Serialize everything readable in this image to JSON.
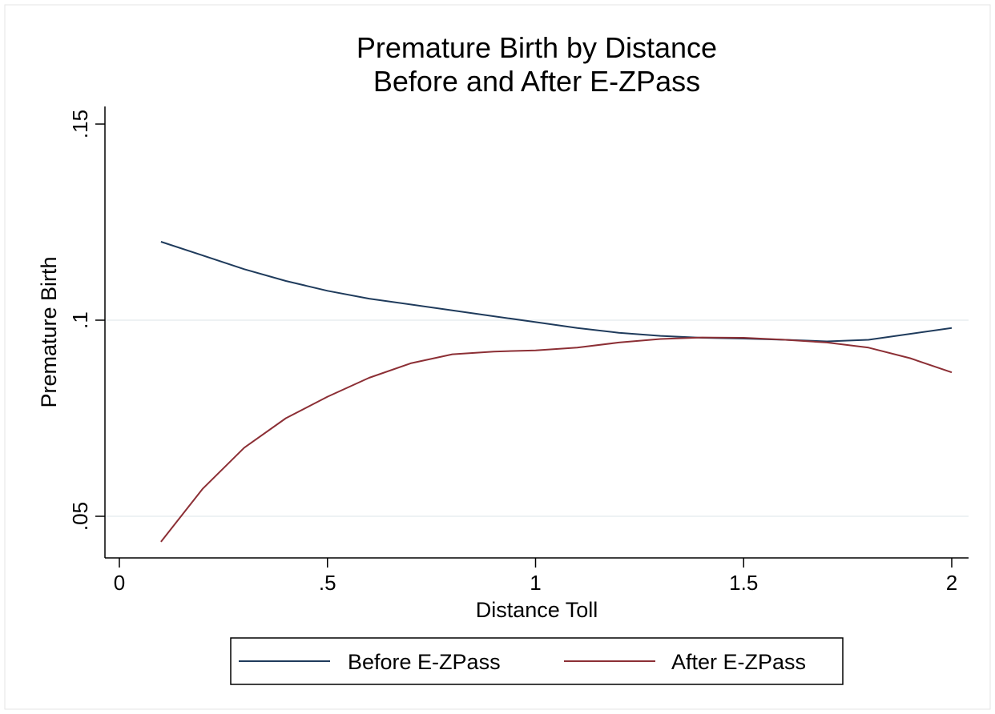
{
  "chart_data": {
    "type": "line",
    "title": [
      "Premature Birth by Distance",
      "Before and After E-ZPass"
    ],
    "xlabel": "Distance Toll",
    "ylabel": "Premature Birth",
    "xlim": [
      0,
      2
    ],
    "ylim": [
      0.045,
      0.15
    ],
    "xticks": [
      0,
      0.5,
      1,
      1.5,
      2
    ],
    "xtick_labels": [
      "0",
      ".5",
      "1",
      "1.5",
      "2"
    ],
    "yticks": [
      0.05,
      0.1,
      0.15
    ],
    "ytick_labels": [
      ".05",
      ".1",
      ".15"
    ],
    "grid": "horizontal at y ticks",
    "legend_position": "bottom",
    "x": [
      0.1,
      0.2,
      0.3,
      0.4,
      0.5,
      0.6,
      0.7,
      0.8,
      0.9,
      1.0,
      1.1,
      1.2,
      1.3,
      1.4,
      1.5,
      1.6,
      1.7,
      1.8,
      1.9,
      2.0
    ],
    "series": [
      {
        "name": "Before E-ZPass",
        "color": "#1f3b5c",
        "values": [
          0.12,
          0.1165,
          0.113,
          0.11,
          0.1075,
          0.1055,
          0.104,
          0.1025,
          0.101,
          0.0995,
          0.098,
          0.0968,
          0.096,
          0.0955,
          0.0953,
          0.095,
          0.0946,
          0.095,
          0.0965,
          0.098
        ]
      },
      {
        "name": "After E-ZPass",
        "color": "#8c2f35",
        "values": [
          0.0435,
          0.057,
          0.0675,
          0.075,
          0.0805,
          0.0853,
          0.089,
          0.0913,
          0.092,
          0.0923,
          0.093,
          0.0943,
          0.0952,
          0.0956,
          0.0955,
          0.095,
          0.0943,
          0.093,
          0.0903,
          0.0867
        ]
      }
    ]
  }
}
